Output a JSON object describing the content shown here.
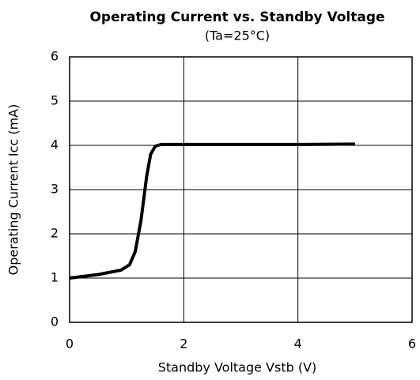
{
  "chart_data": {
    "type": "line",
    "title": "Operating Current vs. Standby Voltage",
    "subtitle": "(Ta=25°C)",
    "x_label": "Standby Voltage  Vstb (V)",
    "y_label": "Operating Current  Icc (mA)",
    "x": [
      0,
      0.5,
      0.9,
      1.05,
      1.15,
      1.25,
      1.3,
      1.35,
      1.42,
      1.5,
      1.6,
      2,
      3,
      4,
      5
    ],
    "series": [
      {
        "name": "Icc",
        "color": "#000000",
        "values": [
          1.0,
          1.08,
          1.18,
          1.3,
          1.6,
          2.3,
          2.8,
          3.3,
          3.8,
          3.98,
          4.02,
          4.02,
          4.02,
          4.02,
          4.03
        ]
      }
    ],
    "xlim": [
      0,
      6
    ],
    "xticks": [
      0,
      2,
      4,
      6
    ],
    "ylim": [
      0,
      6
    ],
    "yticks": [
      0,
      1,
      2,
      3,
      4,
      5,
      6
    ],
    "grid": true
  }
}
